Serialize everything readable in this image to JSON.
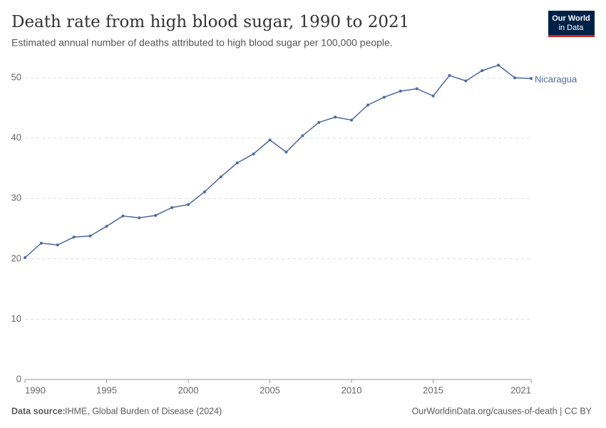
{
  "chart_data": {
    "type": "line",
    "title": "Death rate from high blood sugar, 1990 to 2021",
    "subtitle": "Estimated annual number of deaths attributed to high blood sugar per 100,000 people.",
    "source_label": "Data source:",
    "source": "IHME, Global Burden of Disease (2024)",
    "footer_link": "OurWorldinData.org/causes-of-death | CC BY",
    "logo": [
      "Our World",
      "in Data"
    ],
    "x": [
      1990,
      1991,
      1992,
      1993,
      1994,
      1995,
      1996,
      1997,
      1998,
      1999,
      2000,
      2001,
      2002,
      2003,
      2004,
      2005,
      2006,
      2007,
      2008,
      2009,
      2010,
      2011,
      2012,
      2013,
      2014,
      2015,
      2016,
      2017,
      2018,
      2019,
      2020,
      2021
    ],
    "series": [
      {
        "name": "Nicaragua",
        "color": "#4c6a9c",
        "values": [
          20.2,
          22.6,
          22.3,
          23.6,
          23.8,
          25.4,
          27.1,
          26.8,
          27.2,
          28.5,
          29.0,
          31.1,
          33.6,
          35.9,
          37.4,
          39.7,
          37.7,
          40.4,
          42.6,
          43.5,
          43.0,
          45.5,
          46.8,
          47.8,
          48.2,
          47.0,
          50.4,
          49.5,
          51.2,
          52.1,
          50.0,
          49.9
        ]
      }
    ],
    "xlim": [
      1990,
      2021
    ],
    "xticks": [
      1990,
      1995,
      2000,
      2005,
      2010,
      2015,
      2021
    ],
    "ylim": [
      0,
      52.5
    ],
    "yticks": [
      0,
      10,
      20,
      30,
      40,
      50
    ],
    "grid": true
  }
}
